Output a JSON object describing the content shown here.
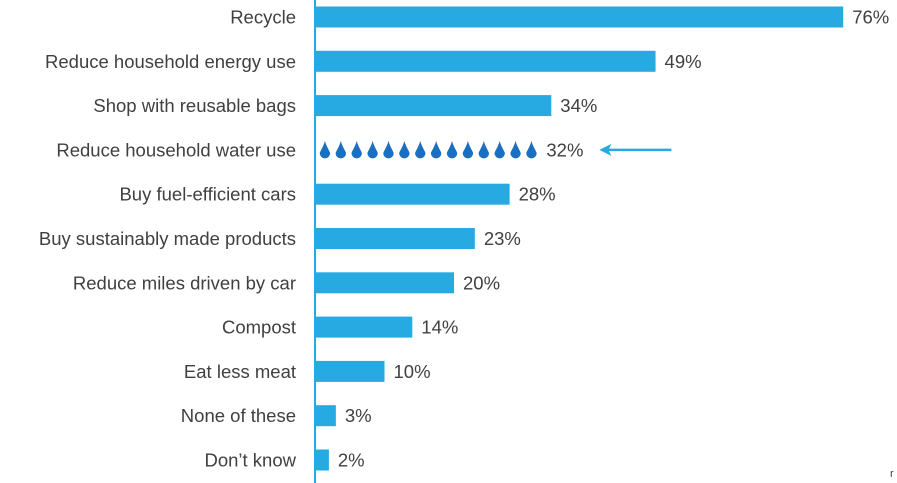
{
  "chart_data": {
    "type": "bar",
    "orientation": "horizontal",
    "categories": [
      "Recycle",
      "Reduce household energy use",
      "Shop with reusable bags",
      "Reduce household water use",
      "Buy fuel-efficient cars",
      "Buy sustainably made products",
      "Reduce miles driven by car",
      "Compost",
      "Eat less meat",
      "None of these",
      "Don’t know"
    ],
    "values": [
      76,
      49,
      34,
      32,
      28,
      23,
      20,
      14,
      10,
      3,
      2
    ],
    "value_labels": [
      "76%",
      "49%",
      "34%",
      "32%",
      "28%",
      "23%",
      "20%",
      "14%",
      "10%",
      "3%",
      "2%"
    ],
    "highlight_index": 3,
    "highlight_style": "water-drops",
    "annotation": "arrow pointing left at highlighted bar",
    "xlim": [
      0,
      80
    ],
    "grid": false,
    "legend": "none",
    "colors": {
      "bar": "#27aae1",
      "drop": "#1a6fc0",
      "axis": "#27aae1",
      "text": "#404040"
    }
  },
  "footer_mark": "r"
}
